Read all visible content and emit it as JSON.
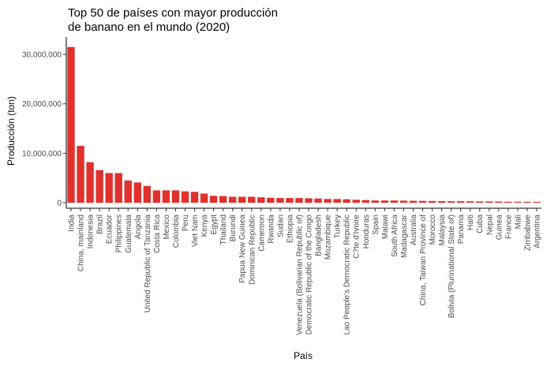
{
  "chart_data": {
    "type": "bar",
    "title_lines": [
      "Top 50 de países con mayor producción",
      "de banano en el mundo (2020)"
    ],
    "xlabel": "País",
    "ylabel": "Producción (ton)",
    "ylim": [
      0,
      32000000
    ],
    "yticks": [
      0,
      10000000,
      20000000,
      30000000
    ],
    "ytick_labels": [
      "0",
      "10,000,000",
      "20,000,000",
      "30,000,000"
    ],
    "bar_color": "#e0312d",
    "grid": false,
    "legend": "none",
    "categories": [
      "India",
      "China, mainland",
      "Indonesia",
      "Brazil",
      "Ecuador",
      "Philippines",
      "Guatemala",
      "Angola",
      "United Republic of Tanzania",
      "Costa Rica",
      "Mexico",
      "Colombia",
      "Peru",
      "Viet Nam",
      "Kenya",
      "Egypt",
      "Thailand",
      "Burundi",
      "Papua New Guinea",
      "Dominican Republic",
      "Cameroon",
      "Rwanda",
      "Sudan",
      "Ethiopia",
      "Venezuela (Bolivarian Republic of)",
      "Democratic Republic of the Congo",
      "Bangladesh",
      "Mozambique",
      "Turkey",
      "Lao People's Democratic Republic",
      "C?te d'Ivoire",
      "Honduras",
      "Spain",
      "Malawi",
      "South Africa",
      "Madagascar",
      "Australia",
      "China, Taiwan Province of",
      "Morocco",
      "Malaysia",
      "Bolivia (Plurinational State of)",
      "Panama",
      "Haiti",
      "Cuba",
      "Nepal",
      "Guinea",
      "France",
      "Mali",
      "Zimbabwe",
      "Argentina"
    ],
    "values": [
      31500000,
      11500000,
      8200000,
      6600000,
      6000000,
      6000000,
      4500000,
      4100000,
      3400000,
      2500000,
      2500000,
      2500000,
      2300000,
      2200000,
      1850000,
      1400000,
      1350000,
      1200000,
      1200000,
      1200000,
      1100000,
      1000000,
      950000,
      950000,
      950000,
      900000,
      850000,
      750000,
      750000,
      700000,
      600000,
      550000,
      450000,
      450000,
      450000,
      420000,
      400000,
      380000,
      350000,
      320000,
      300000,
      300000,
      280000,
      260000,
      250000,
      230000,
      210000,
      200000,
      180000,
      180000
    ]
  }
}
